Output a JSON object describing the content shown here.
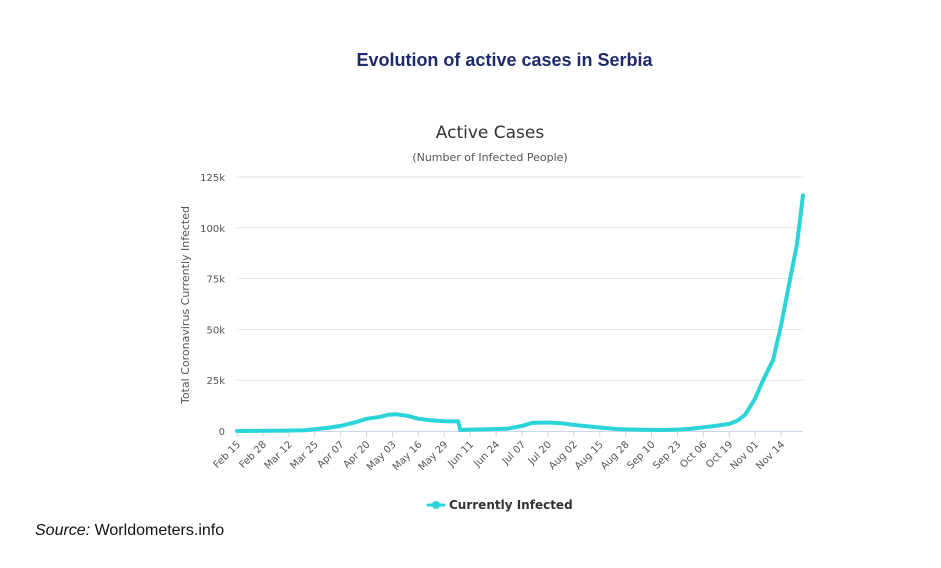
{
  "figure_title": "Evolution of active cases in Serbia",
  "source": {
    "label": "Source:",
    "text": "Worldometers.info"
  },
  "colors": {
    "series": "#2ad4d8",
    "grid": "#e6e6e6",
    "axis": "#ccd6eb"
  },
  "chart_data": {
    "type": "line",
    "title": "Active Cases",
    "subtitle": "(Number of Infected People)",
    "ylabel": "Total Coronavirus Currently Infected",
    "xlabel": "",
    "ylim": [
      0,
      125000
    ],
    "y_ticks": [
      0,
      25000,
      50000,
      75000,
      100000,
      125000
    ],
    "y_tick_labels": [
      "0",
      "25k",
      "50k",
      "75k",
      "100k",
      "125k"
    ],
    "x_ticks": [
      "2020-02-15",
      "2020-02-28",
      "2020-03-12",
      "2020-03-25",
      "2020-04-07",
      "2020-04-20",
      "2020-05-03",
      "2020-05-16",
      "2020-05-29",
      "2020-06-11",
      "2020-06-24",
      "2020-07-07",
      "2020-07-20",
      "2020-08-02",
      "2020-08-15",
      "2020-08-28",
      "2020-09-10",
      "2020-09-23",
      "2020-10-06",
      "2020-10-19",
      "2020-11-01",
      "2020-11-14"
    ],
    "x_tick_labels": [
      "Feb 15",
      "Feb 28",
      "Mar 12",
      "Mar 25",
      "Apr 07",
      "Apr 20",
      "May 03",
      "May 16",
      "May 29",
      "Jun 11",
      "Jun 24",
      "Jul 07",
      "Jul 20",
      "Aug 02",
      "Aug 15",
      "Aug 28",
      "Sep 10",
      "Sep 23",
      "Oct 06",
      "Oct 19",
      "Nov 01",
      "Nov 14"
    ],
    "xlim": [
      "2020-02-15",
      "2020-11-25"
    ],
    "grid": true,
    "legend": "bottom-center",
    "series": [
      {
        "name": "Currently Infected",
        "x": [
          "2020-02-15",
          "2020-03-10",
          "2020-03-20",
          "2020-03-31",
          "2020-04-07",
          "2020-04-15",
          "2020-04-20",
          "2020-04-27",
          "2020-05-01",
          "2020-05-05",
          "2020-05-10",
          "2020-05-16",
          "2020-05-22",
          "2020-05-29",
          "2020-06-02",
          "2020-06-05",
          "2020-06-06",
          "2020-06-11",
          "2020-06-20",
          "2020-06-30",
          "2020-07-07",
          "2020-07-12",
          "2020-07-20",
          "2020-07-27",
          "2020-08-02",
          "2020-08-08",
          "2020-08-15",
          "2020-08-22",
          "2020-08-28",
          "2020-09-05",
          "2020-09-15",
          "2020-09-23",
          "2020-10-01",
          "2020-10-06",
          "2020-10-12",
          "2020-10-19",
          "2020-10-23",
          "2020-10-27",
          "2020-11-01",
          "2020-11-05",
          "2020-11-10",
          "2020-11-14",
          "2020-11-18",
          "2020-11-22",
          "2020-11-25"
        ],
        "values": [
          0,
          200,
          400,
          1500,
          2500,
          4500,
          6000,
          7000,
          8000,
          8200,
          7600,
          6000,
          5300,
          4800,
          4700,
          4700,
          500,
          700,
          900,
          1200,
          2500,
          4000,
          4200,
          3800,
          3000,
          2400,
          1700,
          1100,
          800,
          600,
          500,
          700,
          1200,
          1800,
          2500,
          3500,
          5000,
          8000,
          16000,
          25000,
          35000,
          52000,
          72000,
          92000,
          116000
        ]
      }
    ]
  }
}
